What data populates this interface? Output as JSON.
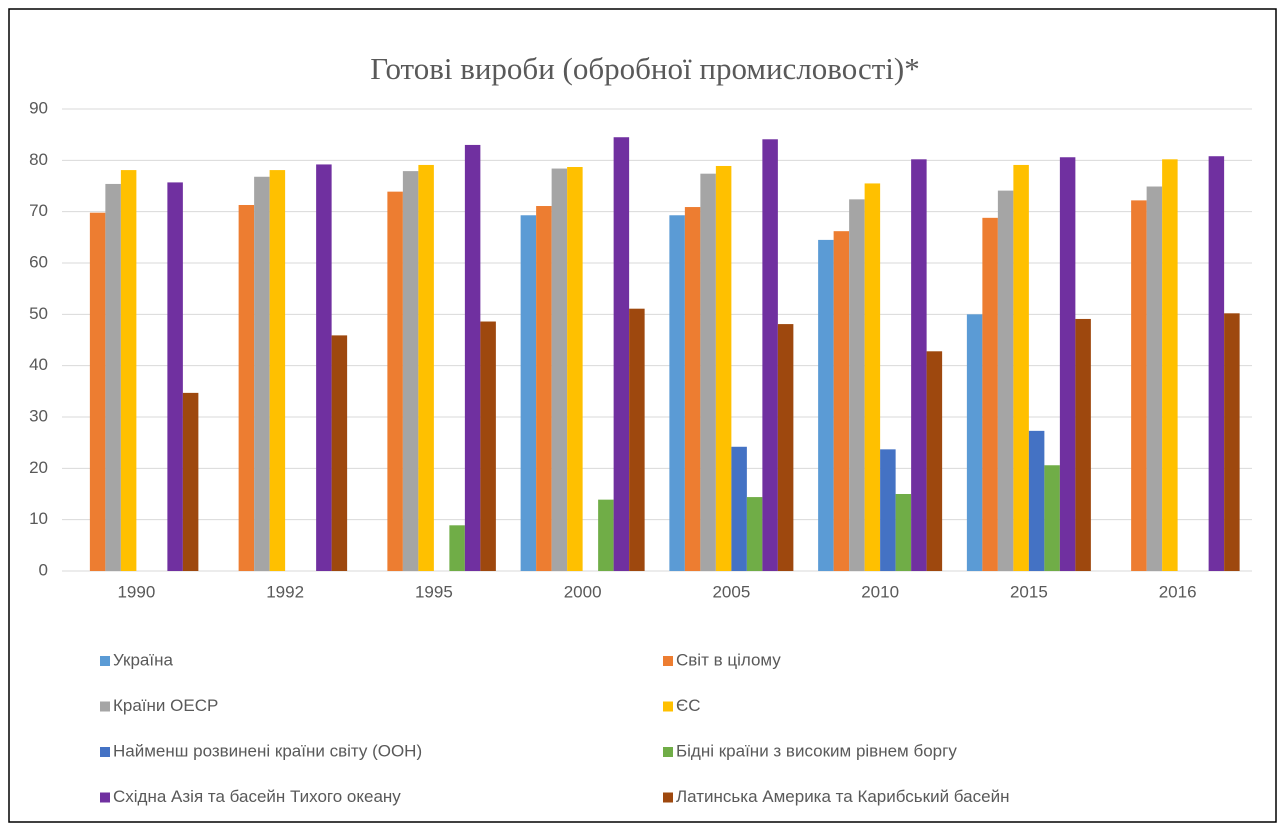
{
  "chart_data": {
    "type": "bar",
    "title": "Готові вироби (обробної промисловості)*",
    "categories": [
      "1990",
      "1992",
      "1995",
      "2000",
      "2005",
      "2010",
      "2015",
      "2016"
    ],
    "series": [
      {
        "name": "Україна",
        "color": "#5b9bd5",
        "values": [
          null,
          null,
          null,
          69.3,
          69.3,
          64.5,
          50.0,
          null
        ]
      },
      {
        "name": "Світ в цілому",
        "color": "#ed7d31",
        "values": [
          69.8,
          71.3,
          73.9,
          71.1,
          70.9,
          66.2,
          68.8,
          72.2
        ]
      },
      {
        "name": "Країни ОЕСР",
        "color": "#a5a5a5",
        "values": [
          75.4,
          76.8,
          77.9,
          78.4,
          77.4,
          72.4,
          74.1,
          74.9
        ]
      },
      {
        "name": "ЄС",
        "color": "#ffc000",
        "values": [
          78.1,
          78.1,
          79.1,
          78.7,
          78.9,
          75.5,
          79.1,
          80.2
        ]
      },
      {
        "name": "Найменш розвинені країни світу (ООН)",
        "color": "#4472c4",
        "values": [
          null,
          null,
          null,
          null,
          24.2,
          23.7,
          27.3,
          null
        ]
      },
      {
        "name": "Бідні країни з високим рівнем боргу",
        "color": "#70ad47",
        "values": [
          null,
          null,
          8.9,
          13.9,
          14.4,
          15.0,
          20.6,
          null
        ]
      },
      {
        "name": "Східна Азія та басейн Тихого океану",
        "color": "#7030a0",
        "values": [
          75.7,
          79.2,
          83.0,
          84.5,
          84.1,
          80.2,
          80.6,
          80.8
        ]
      },
      {
        "name": "Латинська Америка та Карибський басейн",
        "color": "#9e480e",
        "values": [
          34.7,
          45.9,
          48.6,
          51.1,
          48.1,
          42.8,
          49.1,
          50.2
        ]
      }
    ],
    "ylim": [
      0,
      90
    ],
    "yticks": [
      0,
      10,
      20,
      30,
      40,
      50,
      60,
      70,
      80,
      90
    ],
    "grid": true
  }
}
